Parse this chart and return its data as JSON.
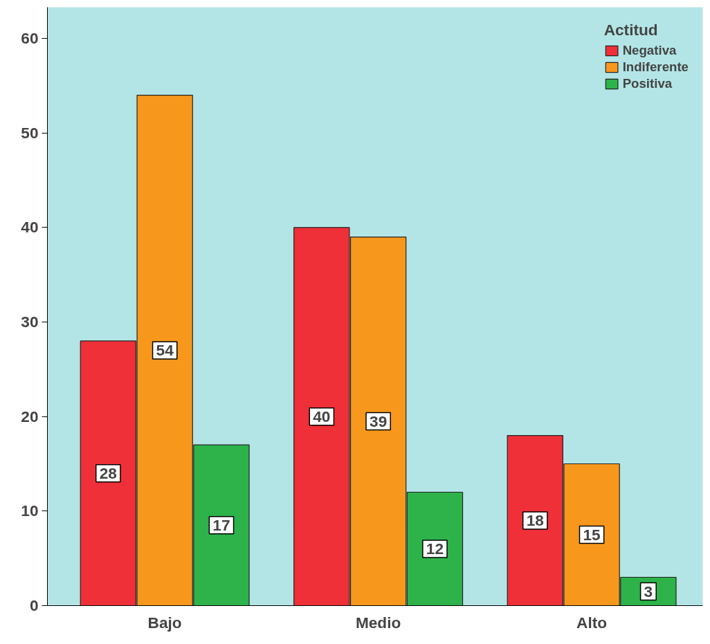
{
  "chart_data": {
    "type": "bar",
    "categories": [
      "Bajo",
      "Medio",
      "Alto"
    ],
    "legend_title": "Actitud",
    "series": [
      {
        "name": "Negativa",
        "color": "#ef3038",
        "values": [
          28,
          40,
          18
        ]
      },
      {
        "name": "Indiferente",
        "color": "#f7981d",
        "values": [
          54,
          39,
          15
        ]
      },
      {
        "name": "Positiva",
        "color": "#2db34a",
        "values": [
          17,
          12,
          3
        ]
      }
    ],
    "ylim": [
      0,
      63.3
    ],
    "yticks": [
      0,
      10,
      20,
      30,
      40,
      50,
      60
    ],
    "data_labels": true,
    "legend": "top right",
    "grid": false
  }
}
